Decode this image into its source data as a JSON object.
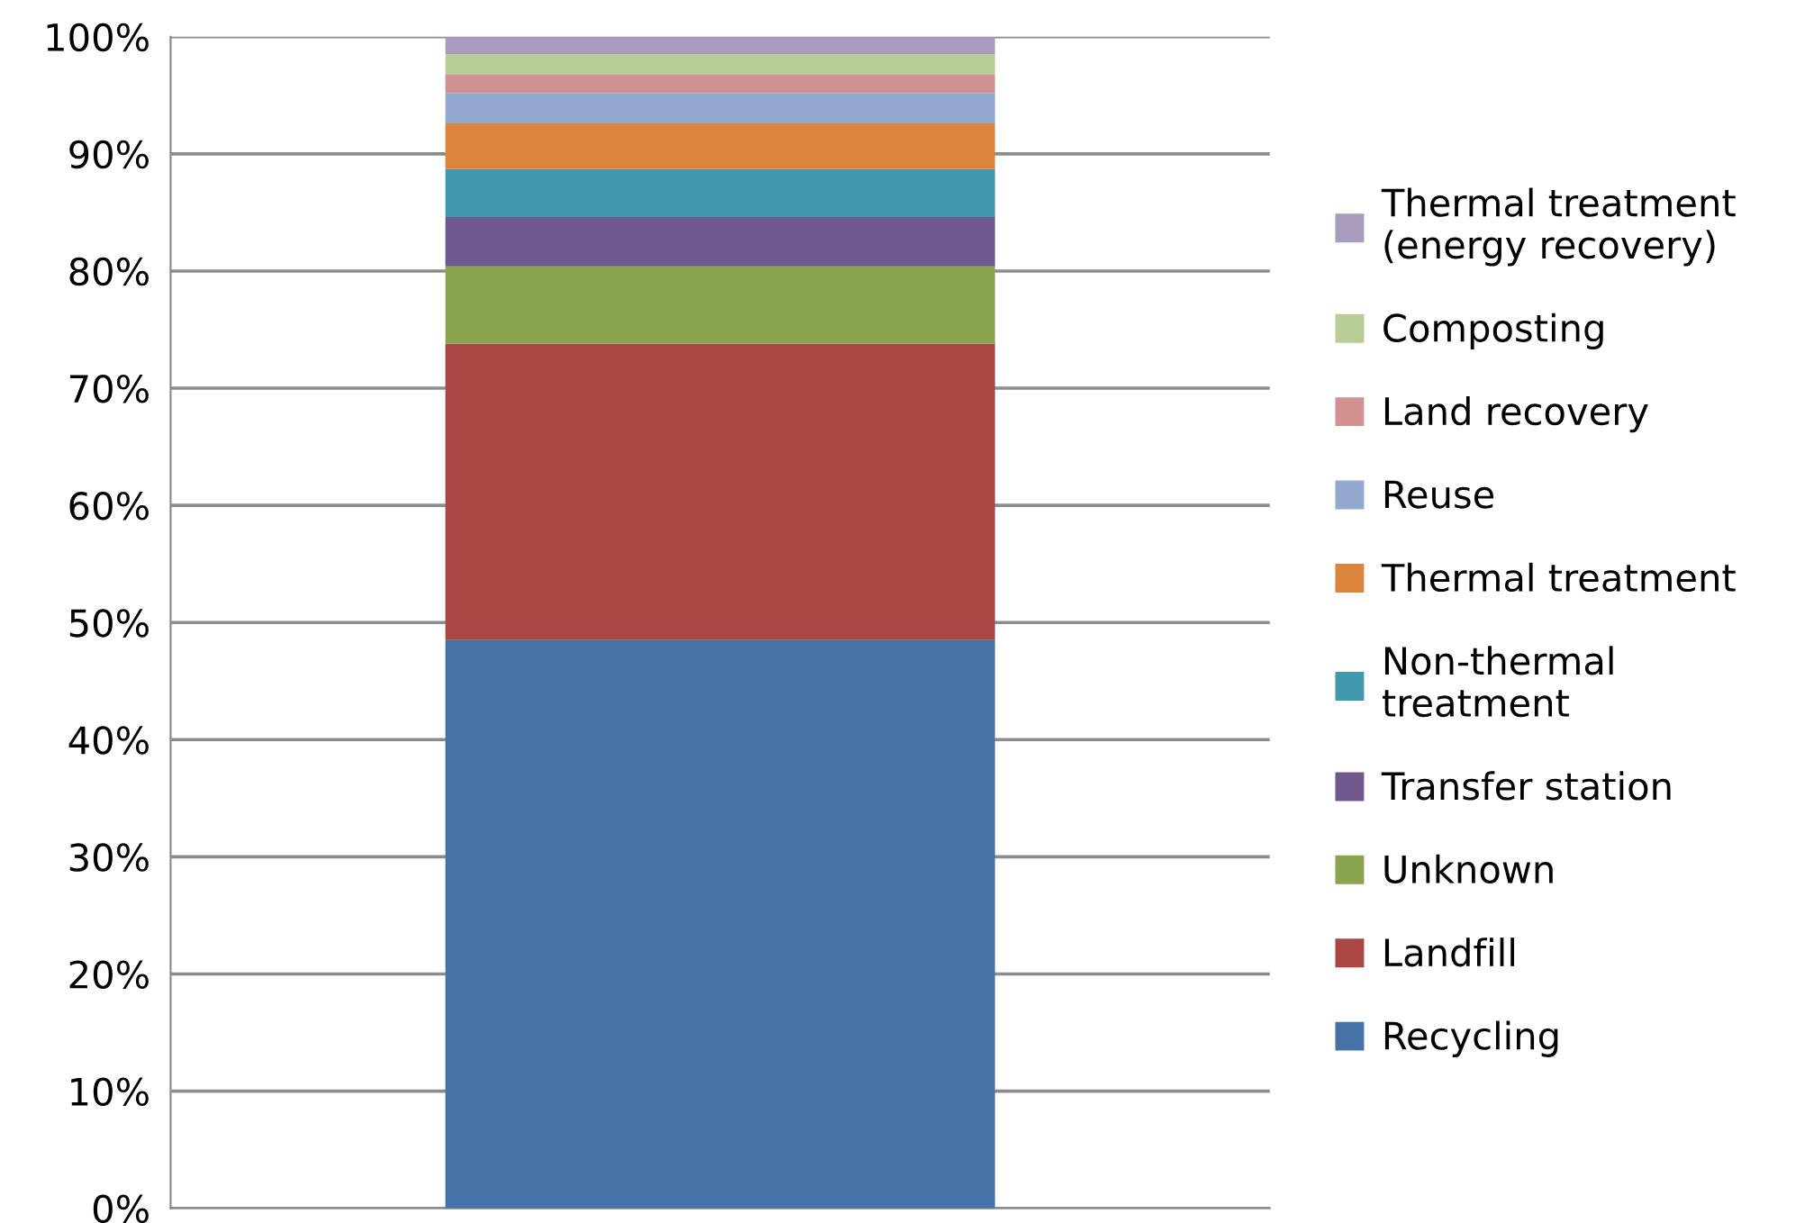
{
  "chart_data": {
    "type": "bar",
    "stacked": true,
    "categories": [
      null
    ],
    "series": [
      {
        "name": "Recycling",
        "color": "#4572a7",
        "values": [
          48.5
        ]
      },
      {
        "name": "Landfill",
        "color": "#aa4643",
        "values": [
          25.3
        ]
      },
      {
        "name": "Unknown",
        "color": "#89a54e",
        "values": [
          6.6
        ]
      },
      {
        "name": "Transfer station",
        "color": "#71588f",
        "values": [
          4.2
        ]
      },
      {
        "name": "Non-thermal\ntreatment",
        "color": "#4198af",
        "values": [
          4.1
        ]
      },
      {
        "name": "Thermal treatment",
        "color": "#db843d",
        "values": [
          3.9
        ]
      },
      {
        "name": "Reuse",
        "color": "#93a9cf",
        "values": [
          2.6
        ]
      },
      {
        "name": "Land recovery",
        "color": "#d19392",
        "values": [
          1.6
        ]
      },
      {
        "name": "Composting",
        "color": "#b9cd96",
        "values": [
          1.7
        ]
      },
      {
        "name": "Thermal treatment\n(energy recovery)",
        "color": "#a99bbd",
        "values": [
          1.5
        ]
      }
    ],
    "ylim": [
      0,
      100
    ],
    "yticks": [
      {
        "value": 0,
        "label": "0%"
      },
      {
        "value": 10,
        "label": "10%"
      },
      {
        "value": 20,
        "label": "20%"
      },
      {
        "value": 30,
        "label": "30%"
      },
      {
        "value": 40,
        "label": "40%"
      },
      {
        "value": 50,
        "label": "50%"
      },
      {
        "value": 60,
        "label": "60%"
      },
      {
        "value": 70,
        "label": "70%"
      },
      {
        "value": 80,
        "label": "80%"
      },
      {
        "value": 90,
        "label": "90%"
      },
      {
        "value": 100,
        "label": "100%"
      }
    ],
    "grid": "y",
    "legend": "right"
  }
}
